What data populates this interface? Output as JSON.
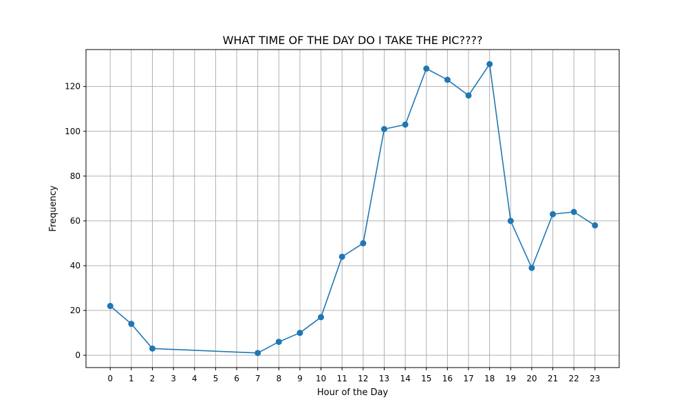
{
  "chart_data": {
    "type": "line",
    "title": "WHAT TIME OF THE DAY DO I TAKE THE PIC????",
    "xlabel": "Hour of the Day",
    "ylabel": "Frequency",
    "x_ticks": [
      0,
      1,
      2,
      3,
      4,
      5,
      6,
      7,
      8,
      9,
      10,
      11,
      12,
      13,
      14,
      15,
      16,
      17,
      18,
      19,
      20,
      21,
      22,
      23
    ],
    "y_ticks": [
      0,
      20,
      40,
      60,
      80,
      100,
      120
    ],
    "xlim": [
      -1.15,
      24.15
    ],
    "ylim": [
      -5.5,
      136.5
    ],
    "grid": true,
    "color": "#1f77b4",
    "marker": "circle",
    "series": [
      {
        "x": [
          0,
          1,
          2,
          7,
          8,
          9,
          10,
          11,
          12,
          13,
          14,
          15,
          16,
          17,
          18,
          19,
          20,
          21,
          22,
          23
        ],
        "y": [
          22,
          14,
          3,
          1,
          6,
          10,
          17,
          44,
          50,
          101,
          103,
          128,
          123,
          116,
          130,
          60,
          39,
          63,
          64,
          58
        ]
      }
    ]
  }
}
